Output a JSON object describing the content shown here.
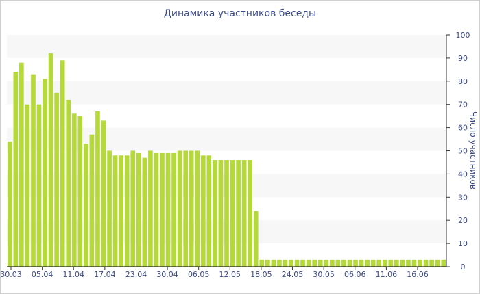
{
  "chart_data": {
    "type": "bar",
    "title": "Динамика участников беседы",
    "xlabel": "",
    "ylabel": "Число участников",
    "ylim": [
      0,
      100
    ],
    "y_ticks": [
      0,
      10,
      20,
      30,
      40,
      50,
      60,
      70,
      80,
      90,
      100
    ],
    "x_tick_labels": [
      "30.03",
      "05.04",
      "11.04",
      "17.04",
      "23.04",
      "30.04",
      "06.05",
      "12.05",
      "18.05",
      "24.05",
      "30.05",
      "06.06",
      "11.06",
      "16.06"
    ],
    "bar_color": "#b5d93a",
    "band_color": "#f7f7f7",
    "text_color": "#3b4a8a",
    "grid": false,
    "values": [
      54,
      84,
      88,
      70,
      83,
      70,
      81,
      92,
      75,
      89,
      72,
      66,
      65,
      53,
      57,
      67,
      63,
      50,
      48,
      48,
      48,
      50,
      49,
      47,
      50,
      49,
      49,
      49,
      49,
      50,
      50,
      50,
      50,
      48,
      48,
      46,
      46,
      46,
      46,
      46,
      46,
      46,
      24,
      3,
      3,
      3,
      3,
      3,
      3,
      3,
      3,
      3,
      3,
      3,
      3,
      3,
      3,
      3,
      3,
      3,
      3,
      3,
      3,
      3,
      3,
      3,
      3,
      3,
      3,
      3,
      3,
      3,
      3,
      3,
      3
    ]
  }
}
